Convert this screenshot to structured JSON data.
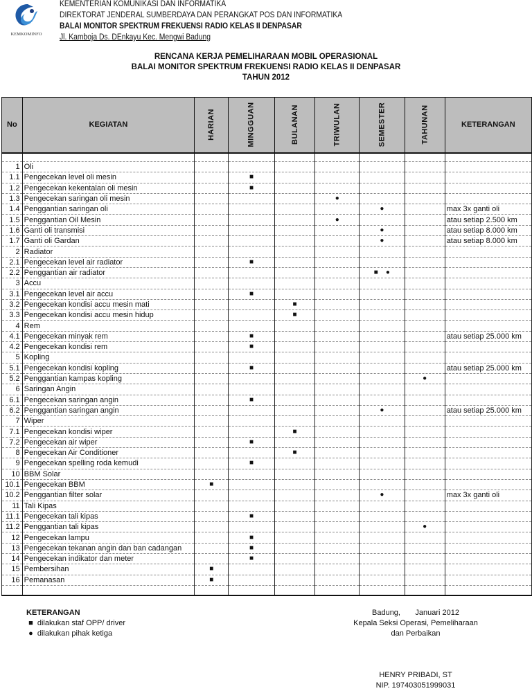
{
  "header": {
    "lines": [
      "KEMENTERIAN KOMUNIKASI DAN INFORMATIKA",
      "DIREKTORAT JENDERAL SUMBERDAYA DAN PERANGKAT POS DAN INFORMATIKA",
      "BALAI MONITOR SPEKTRUM FREKUENSI RADIO KELAS II DENPASAR",
      "Jl. Kamboja Ds. DEnkayu Kec. Mengwi Badung"
    ],
    "logo_text": "KEMKOMINFO"
  },
  "title": [
    "RENCANA KERJA PEMELIHARAAN MOBIL OPERASIONAL",
    "BALAI MONITOR SPEKTRUM FREKUENSI RADIO KELAS II DENPASAR",
    "TAHUN 2012"
  ],
  "columns": [
    "No",
    "KEGIATAN",
    "HARIAN",
    "MINGGUAN",
    "BULANAN",
    "TRIWULAN",
    "SEMESTER",
    "TAHUNAN",
    "KETERANGAN"
  ],
  "symbols": {
    "square": "■",
    "circle": "●"
  },
  "rows": [
    {
      "no": "1",
      "kegiatan": "Oli",
      "m": [
        "",
        "",
        "",
        "",
        "",
        ""
      ],
      "ket": ""
    },
    {
      "no": "1.1",
      "kegiatan": "Pengecekan level oli mesin",
      "m": [
        "",
        "■",
        "",
        "",
        "",
        ""
      ],
      "ket": ""
    },
    {
      "no": "1.2",
      "kegiatan": "Pengecekan kekentalan oli mesin",
      "m": [
        "",
        "■",
        "",
        "",
        "",
        ""
      ],
      "ket": ""
    },
    {
      "no": "1.3",
      "kegiatan": "Pengecekan saringan oli mesin",
      "m": [
        "",
        "",
        "",
        "●",
        "",
        ""
      ],
      "ket": ""
    },
    {
      "no": "1.4",
      "kegiatan": "Penggantian saringan oli",
      "m": [
        "",
        "",
        "",
        "",
        "●",
        ""
      ],
      "ket": "max 3x ganti oli"
    },
    {
      "no": "1.5",
      "kegiatan": "Penggantian Oil Mesin",
      "m": [
        "",
        "",
        "",
        "●",
        "",
        ""
      ],
      "ket": "atau setiap 2.500 km"
    },
    {
      "no": "1.6",
      "kegiatan": "Ganti oli transmisi",
      "m": [
        "",
        "",
        "",
        "",
        "●",
        ""
      ],
      "ket": "atau setiap 8.000 km"
    },
    {
      "no": "1.7",
      "kegiatan": "Ganti oli Gardan",
      "m": [
        "",
        "",
        "",
        "",
        "●",
        ""
      ],
      "ket": "atau setiap 8.000 km"
    },
    {
      "no": "2",
      "kegiatan": "Radiator",
      "m": [
        "",
        "",
        "",
        "",
        "",
        ""
      ],
      "ket": ""
    },
    {
      "no": "2.1",
      "kegiatan": "Pengecekan level air radiator",
      "m": [
        "",
        "■",
        "",
        "",
        "",
        ""
      ],
      "ket": ""
    },
    {
      "no": "2.2",
      "kegiatan": "Penggantian air radiator",
      "m": [
        "",
        "",
        "",
        "",
        "■    ●",
        ""
      ],
      "ket": ""
    },
    {
      "no": "3",
      "kegiatan": "Accu",
      "m": [
        "",
        "",
        "",
        "",
        "",
        ""
      ],
      "ket": ""
    },
    {
      "no": "3.1",
      "kegiatan": "Pengecekan level air accu",
      "m": [
        "",
        "■",
        "",
        "",
        "",
        ""
      ],
      "ket": ""
    },
    {
      "no": "3.2",
      "kegiatan": "Pengecekan kondisi accu mesin mati",
      "m": [
        "",
        "",
        "■",
        "",
        "",
        ""
      ],
      "ket": ""
    },
    {
      "no": "3.3",
      "kegiatan": "Pengecekan kondisi accu mesin hidup",
      "m": [
        "",
        "",
        "■",
        "",
        "",
        ""
      ],
      "ket": ""
    },
    {
      "no": "4",
      "kegiatan": "Rem",
      "m": [
        "",
        "",
        "",
        "",
        "",
        ""
      ],
      "ket": ""
    },
    {
      "no": "4.1",
      "kegiatan": "Pengecekan minyak rem",
      "m": [
        "",
        "■",
        "",
        "",
        "",
        ""
      ],
      "ket": "atau setiap 25.000 km"
    },
    {
      "no": "4.2",
      "kegiatan": "Pengecekan kondisi rem",
      "m": [
        "",
        "■",
        "",
        "",
        "",
        ""
      ],
      "ket": ""
    },
    {
      "no": "5",
      "kegiatan": "Kopling",
      "m": [
        "",
        "",
        "",
        "",
        "",
        ""
      ],
      "ket": ""
    },
    {
      "no": "5.1",
      "kegiatan": "Pengecekan kondisi kopling",
      "m": [
        "",
        "■",
        "",
        "",
        "",
        ""
      ],
      "ket": "atau setiap 25.000 km"
    },
    {
      "no": "5.2",
      "kegiatan": "Penggantian kampas kopling",
      "m": [
        "",
        "",
        "",
        "",
        "",
        "●"
      ],
      "ket": ""
    },
    {
      "no": "6",
      "kegiatan": "Saringan Angin",
      "m": [
        "",
        "",
        "",
        "",
        "",
        ""
      ],
      "ket": ""
    },
    {
      "no": "6.1",
      "kegiatan": "Pengecekan saringan angin",
      "m": [
        "",
        "■",
        "",
        "",
        "",
        ""
      ],
      "ket": ""
    },
    {
      "no": "6.2",
      "kegiatan": "Penggantian saringan angin",
      "m": [
        "",
        "",
        "",
        "",
        "●",
        ""
      ],
      "ket": "atau setiap 25.000 km"
    },
    {
      "no": "7",
      "kegiatan": "Wiper",
      "m": [
        "",
        "",
        "",
        "",
        "",
        ""
      ],
      "ket": ""
    },
    {
      "no": "7.1",
      "kegiatan": "Pengecekan kondisi wiper",
      "m": [
        "",
        "",
        "■",
        "",
        "",
        ""
      ],
      "ket": ""
    },
    {
      "no": "7.2",
      "kegiatan": "Pengecekan air wiper",
      "m": [
        "",
        "■",
        "",
        "",
        "",
        ""
      ],
      "ket": ""
    },
    {
      "no": "8",
      "kegiatan": "Pengecekan Air Conditioner",
      "m": [
        "",
        "",
        "■",
        "",
        "",
        ""
      ],
      "ket": ""
    },
    {
      "no": "9",
      "kegiatan": "Pengecekan spelling roda kemudi",
      "m": [
        "",
        "■",
        "",
        "",
        "",
        ""
      ],
      "ket": ""
    },
    {
      "no": "10",
      "kegiatan": "BBM Solar",
      "m": [
        "",
        "",
        "",
        "",
        "",
        ""
      ],
      "ket": ""
    },
    {
      "no": "10.1",
      "kegiatan": "Pengecekan BBM",
      "m": [
        "■",
        "",
        "",
        "",
        "",
        ""
      ],
      "ket": ""
    },
    {
      "no": "10.2",
      "kegiatan": "Penggantian filter solar",
      "m": [
        "",
        "",
        "",
        "",
        "●",
        ""
      ],
      "ket": "max 3x ganti oli"
    },
    {
      "no": "11",
      "kegiatan": "Tali Kipas",
      "m": [
        "",
        "",
        "",
        "",
        "",
        ""
      ],
      "ket": ""
    },
    {
      "no": "11.1",
      "kegiatan": "Pengecekan tali kipas",
      "m": [
        "",
        "■",
        "",
        "",
        "",
        ""
      ],
      "ket": ""
    },
    {
      "no": "11.2",
      "kegiatan": "Penggantian tali kipas",
      "m": [
        "",
        "",
        "",
        "",
        "",
        "●"
      ],
      "ket": ""
    },
    {
      "no": "12",
      "kegiatan": "Pengecekan lampu",
      "m": [
        "",
        "■",
        "",
        "",
        "",
        ""
      ],
      "ket": ""
    },
    {
      "no": "13",
      "kegiatan": "Pengecekan tekanan angin dan ban cadangan",
      "m": [
        "",
        "■",
        "",
        "",
        "",
        ""
      ],
      "ket": ""
    },
    {
      "no": "14",
      "kegiatan": "Pengecekan indikator dan meter",
      "m": [
        "",
        "■",
        "",
        "",
        "",
        ""
      ],
      "ket": ""
    },
    {
      "no": "15",
      "kegiatan": "Pembersihan",
      "m": [
        "■",
        "",
        "",
        "",
        "",
        ""
      ],
      "ket": ""
    },
    {
      "no": "16",
      "kegiatan": "Pemanasan",
      "m": [
        "■",
        "",
        "",
        "",
        "",
        ""
      ],
      "ket": ""
    }
  ],
  "legend": {
    "title": "KETERANGAN",
    "items": [
      {
        "symbol": "■",
        "label": "dilakukan staf OPP/ driver"
      },
      {
        "symbol": "●",
        "label": "dilakukan pihak ketiga"
      }
    ]
  },
  "signature": {
    "place_date": "Badung,       Januari 2012",
    "role1": "Kepala Seksi Operasi, Pemeliharaan",
    "role2": "dan Perbaikan",
    "name": "HENRY PRIBADI, ST",
    "nip": "NIP. 197403051999031"
  }
}
